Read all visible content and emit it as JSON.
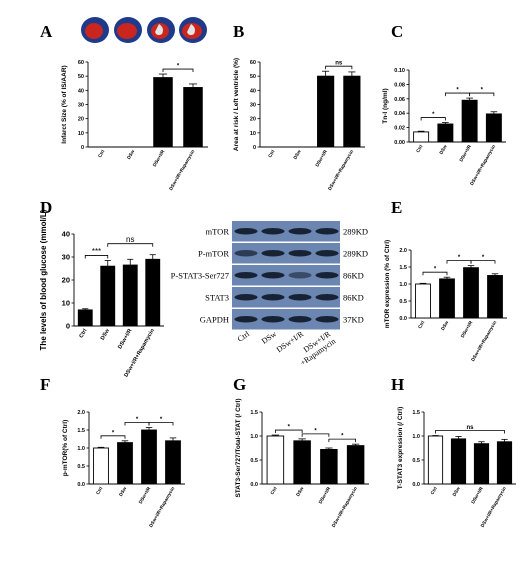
{
  "chart_data": [
    {
      "id": "A",
      "panel_label": "A",
      "type": "bar",
      "categories": [
        "Ctrl",
        "DSw",
        "DSw+I/R",
        "DSw+I/R+Rapamycin"
      ],
      "values": [
        0,
        0,
        49,
        42
      ],
      "errors": [
        0,
        0,
        2.5,
        2.5
      ],
      "fills": [
        "#000000",
        "#000000",
        "#000000",
        "#000000"
      ],
      "ylabel": "Infarct Size (% of IS/AAR)",
      "ylim": [
        0,
        60
      ],
      "yticks": [
        "0",
        "10",
        "20",
        "30",
        "40",
        "50",
        "60"
      ],
      "significance": [
        {
          "from": 2,
          "to": 3,
          "label": "*"
        }
      ]
    },
    {
      "id": "B",
      "panel_label": "B",
      "type": "bar",
      "categories": [
        "Ctrl",
        "DSw",
        "DSw+I/R",
        "DSw+I/R+Rapamycin"
      ],
      "values": [
        0,
        0,
        50,
        50
      ],
      "errors": [
        0,
        0,
        3.5,
        3
      ],
      "fills": [
        "#000000",
        "#000000",
        "#000000",
        "#000000"
      ],
      "ylabel": "Area at risk / Left ventricle (%)",
      "ylim": [
        0,
        60
      ],
      "yticks": [
        "0",
        "10",
        "20",
        "30",
        "40",
        "50",
        "60"
      ],
      "significance": [
        {
          "from": 2,
          "to": 3,
          "label": "ns"
        }
      ]
    },
    {
      "id": "C",
      "panel_label": "C",
      "type": "bar",
      "categories": [
        "Ctrl",
        "DSw",
        "DSw+I/R",
        "DSw+I/R+Rapamycin"
      ],
      "values": [
        0.014,
        0.025,
        0.058,
        0.039
      ],
      "errors": [
        0.001,
        0.002,
        0.003,
        0.003
      ],
      "fills": [
        "#ffffff",
        "#000000",
        "#000000",
        "#000000"
      ],
      "ylabel": "Tn-I (ng/ml)",
      "ylim": [
        0,
        0.1
      ],
      "yticks": [
        "0.00",
        "0.02",
        "0.04",
        "0.06",
        "0.08",
        "0.10"
      ],
      "significance": [
        {
          "from": 0,
          "to": 1,
          "label": "*"
        },
        {
          "from": 1,
          "to": 2,
          "label": "*"
        },
        {
          "from": 2,
          "to": 3,
          "label": "*"
        }
      ]
    },
    {
      "id": "D",
      "panel_label": "D",
      "type": "bar",
      "categories": [
        "Ctrl",
        "DSw",
        "DSw+I/R",
        "DSw+I/R+Rapamycin"
      ],
      "values": [
        7,
        26,
        26.5,
        29
      ],
      "errors": [
        0.5,
        2.5,
        2.5,
        2
      ],
      "fills": [
        "#000000",
        "#000000",
        "#000000",
        "#000000"
      ],
      "ylabel": "The levels of blood glucose (mmol/L)",
      "ylim": [
        0,
        40
      ],
      "yticks": [
        "0",
        "10",
        "20",
        "30",
        "40"
      ],
      "significance": [
        {
          "from": 0,
          "to": 1,
          "label": "***"
        },
        {
          "from": 1,
          "to": 3,
          "label": "ns"
        }
      ]
    },
    {
      "id": "E",
      "panel_label": "E",
      "type": "bar",
      "categories": [
        "Ctrl",
        "DSw",
        "DSw+I/R",
        "DSw+I/R+Rapamycin"
      ],
      "values": [
        1.0,
        1.15,
        1.48,
        1.25
      ],
      "errors": [
        0.02,
        0.05,
        0.06,
        0.05
      ],
      "fills": [
        "#ffffff",
        "#000000",
        "#000000",
        "#000000"
      ],
      "ylabel": "mTOR expression (% of Ctrl)",
      "ylim": [
        0,
        2.0
      ],
      "yticks": [
        "0.0",
        "0.5",
        "1.0",
        "1.5",
        "2.0"
      ],
      "significance": [
        {
          "from": 0,
          "to": 1,
          "label": "*"
        },
        {
          "from": 1,
          "to": 2,
          "label": "*"
        },
        {
          "from": 2,
          "to": 3,
          "label": "*"
        }
      ]
    },
    {
      "id": "F",
      "panel_label": "F",
      "type": "bar",
      "categories": [
        "Ctrl",
        "DSw",
        "DSw+I/R",
        "DSw+I/R+Rapamycin"
      ],
      "values": [
        1.0,
        1.15,
        1.5,
        1.2
      ],
      "errors": [
        0.02,
        0.05,
        0.07,
        0.08
      ],
      "fills": [
        "#ffffff",
        "#000000",
        "#000000",
        "#000000"
      ],
      "ylabel": "p-mTOR(% of Ctrl)",
      "ylim": [
        0,
        2.0
      ],
      "yticks": [
        "0.0",
        "0.5",
        "1.0",
        "1.5",
        "2.0"
      ],
      "significance": [
        {
          "from": 0,
          "to": 1,
          "label": "*"
        },
        {
          "from": 1,
          "to": 2,
          "label": "*"
        },
        {
          "from": 2,
          "to": 3,
          "label": "*"
        }
      ]
    },
    {
      "id": "G",
      "panel_label": "G",
      "type": "bar",
      "categories": [
        "Ctrl",
        "DSw",
        "DSw+I/R",
        "DSw+I/R+Rapamycin"
      ],
      "values": [
        1.0,
        0.9,
        0.72,
        0.8
      ],
      "errors": [
        0.02,
        0.04,
        0.03,
        0.03
      ],
      "fills": [
        "#ffffff",
        "#000000",
        "#000000",
        "#000000"
      ],
      "ylabel": "STAT3-Ser727/Total-STAT (/ Ctrl)",
      "ylim": [
        0,
        1.5
      ],
      "yticks": [
        "0.0",
        "0.5",
        "1.0",
        "1.5"
      ],
      "significance": [
        {
          "from": 0,
          "to": 1,
          "label": "*"
        },
        {
          "from": 1,
          "to": 2,
          "label": "*"
        },
        {
          "from": 2,
          "to": 3,
          "label": "*"
        }
      ]
    },
    {
      "id": "H",
      "panel_label": "H",
      "type": "bar",
      "categories": [
        "Ctrl",
        "DSw",
        "DSw+I/R",
        "DSw+I/R+Rapamycin"
      ],
      "values": [
        1.0,
        0.94,
        0.84,
        0.88
      ],
      "errors": [
        0.01,
        0.05,
        0.04,
        0.05
      ],
      "fills": [
        "#ffffff",
        "#000000",
        "#000000",
        "#000000"
      ],
      "ylabel": "T-STAT3 expression (/ Ctrl)",
      "ylim": [
        0,
        1.5
      ],
      "yticks": [
        "0.0",
        "0.5",
        "1.0",
        "1.5"
      ],
      "significance": [
        {
          "from": 0,
          "to": 3,
          "label": "ns"
        }
      ]
    }
  ],
  "blot": {
    "rows": [
      {
        "label": "mTOR",
        "size": "289KD"
      },
      {
        "label": "P-mTOR",
        "size": "289KD"
      },
      {
        "label": "P-STAT3-Ser727",
        "size": "86KD"
      },
      {
        "label": "STAT3",
        "size": "86KD"
      },
      {
        "label": "GAPDH",
        "size": "37KD"
      }
    ],
    "lanes": [
      "Ctrl",
      "DSw",
      "DSw+I/R",
      "DSw+I/R\n+Rapamycin"
    ],
    "colors": {
      "background": "#6b86b0",
      "band": "#131c2e"
    }
  },
  "heart_images": {
    "colors": [
      "#1f3a8a",
      "#c8261e",
      "#e4e4e4"
    ]
  }
}
